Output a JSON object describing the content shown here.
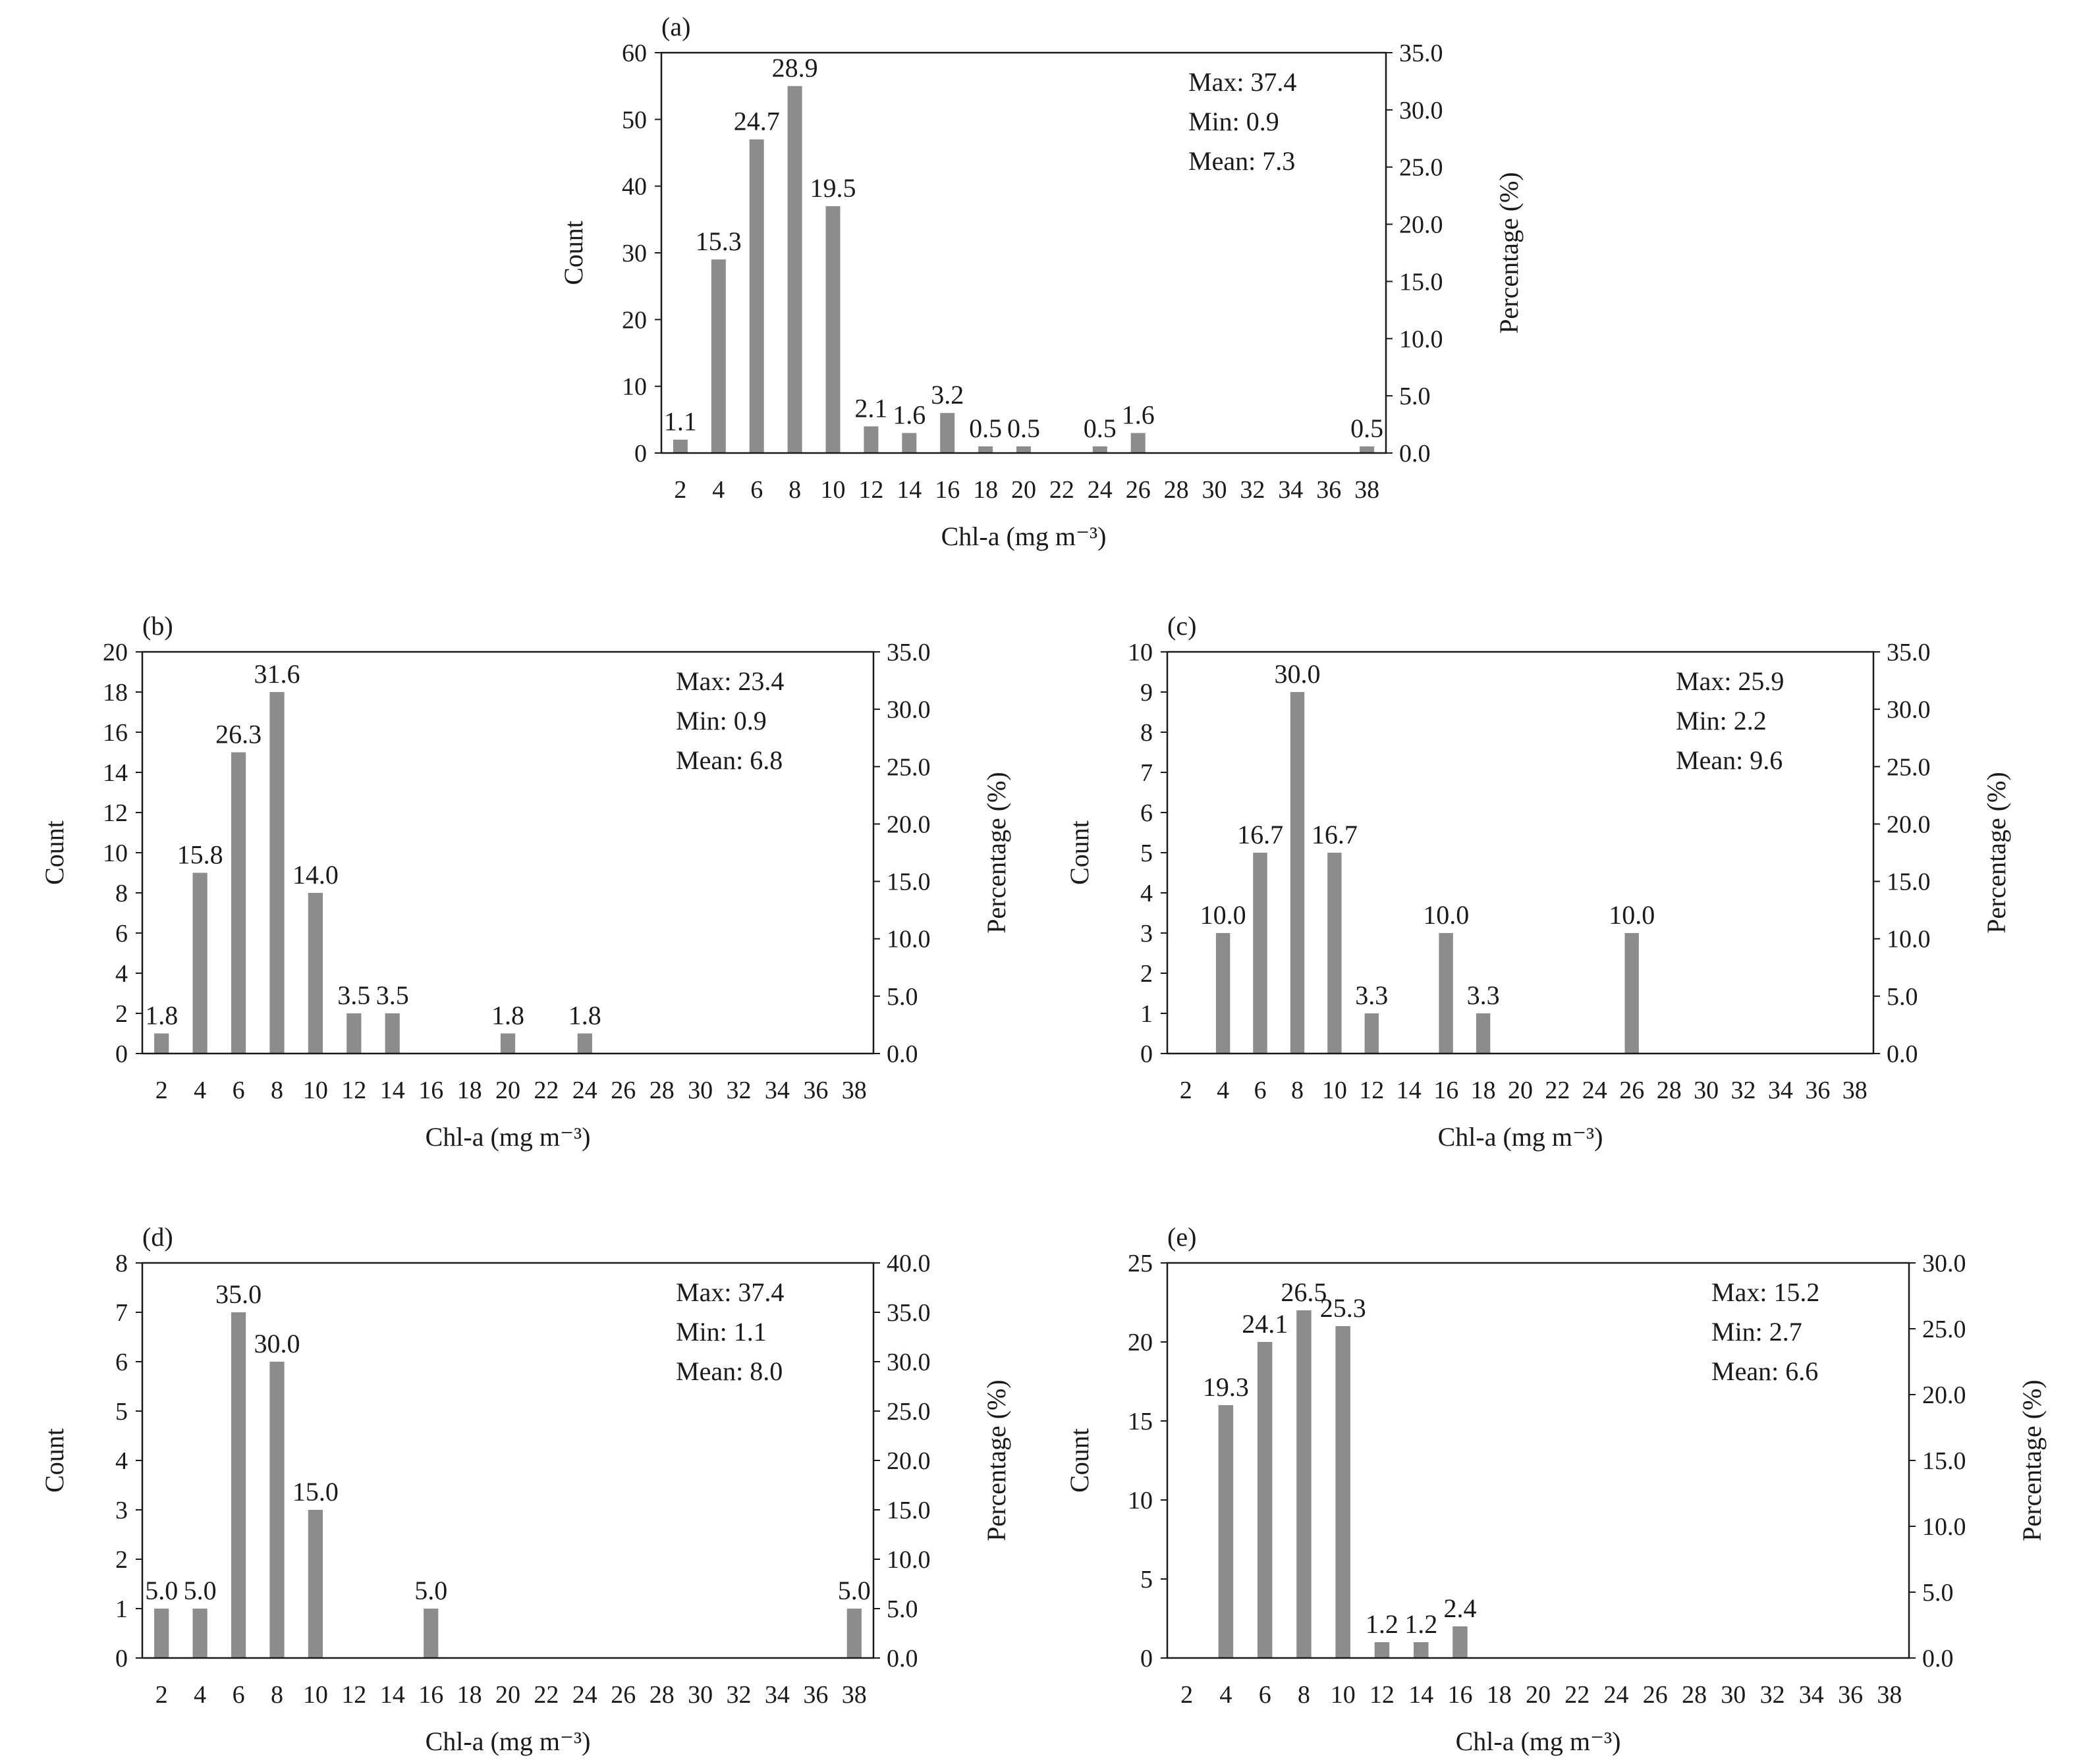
{
  "chart_data": [
    {
      "type": "bar",
      "panel_label": "(a)",
      "categories": [
        "2",
        "4",
        "6",
        "8",
        "10",
        "12",
        "14",
        "16",
        "18",
        "20",
        "22",
        "24",
        "26",
        "28",
        "30",
        "32",
        "34",
        "36",
        "38"
      ],
      "counts": [
        2,
        29,
        47,
        55,
        37,
        4,
        3,
        6,
        1,
        1,
        0,
        1,
        3,
        0,
        0,
        0,
        0,
        0,
        1
      ],
      "percent_labels": [
        "1.1",
        "15.3",
        "24.7",
        "28.9",
        "19.5",
        "2.1",
        "1.6",
        "3.2",
        "0.5",
        "0.5",
        "",
        "0.5",
        "1.6",
        "",
        "",
        "",
        "",
        "",
        "0.5"
      ],
      "xlabel": "Chl-a (mg m⁻³)",
      "ylabel": "Count",
      "y2label": "Percentage (%)",
      "ylim": [
        0,
        60
      ],
      "yticks": [
        "0",
        "10",
        "20",
        "30",
        "40",
        "50",
        "60"
      ],
      "y2lim": [
        0,
        35
      ],
      "y2ticks": [
        "0.0",
        "5.0",
        "10.0",
        "15.0",
        "20.0",
        "25.0",
        "30.0",
        "35.0"
      ],
      "stats": [
        "Max: 37.4",
        "Min: 0.9",
        "Mean: 7.3"
      ],
      "bar_color": "#8c8c8c"
    },
    {
      "type": "bar",
      "panel_label": "(b)",
      "categories": [
        "2",
        "4",
        "6",
        "8",
        "10",
        "12",
        "14",
        "16",
        "18",
        "20",
        "22",
        "24",
        "26",
        "28",
        "30",
        "32",
        "34",
        "36",
        "38"
      ],
      "counts": [
        1,
        9,
        15,
        18,
        8,
        2,
        2,
        0,
        0,
        1,
        0,
        1,
        0,
        0,
        0,
        0,
        0,
        0,
        0
      ],
      "percent_labels": [
        "1.8",
        "15.8",
        "26.3",
        "31.6",
        "14.0",
        "3.5",
        "3.5",
        "",
        "",
        "1.8",
        "",
        "1.8",
        "",
        "",
        "",
        "",
        "",
        "",
        ""
      ],
      "xlabel": "Chl-a (mg m⁻³)",
      "ylabel": "Count",
      "y2label": "Percentage (%)",
      "ylim": [
        0,
        20
      ],
      "yticks": [
        "0",
        "2",
        "4",
        "6",
        "8",
        "10",
        "12",
        "14",
        "16",
        "18",
        "20"
      ],
      "y2lim": [
        0,
        35
      ],
      "y2ticks": [
        "0.0",
        "5.0",
        "10.0",
        "15.0",
        "20.0",
        "25.0",
        "30.0",
        "35.0"
      ],
      "stats": [
        "Max: 23.4",
        "Min: 0.9",
        "Mean: 6.8"
      ],
      "bar_color": "#8c8c8c"
    },
    {
      "type": "bar",
      "panel_label": "(c)",
      "categories": [
        "2",
        "4",
        "6",
        "8",
        "10",
        "12",
        "14",
        "16",
        "18",
        "20",
        "22",
        "24",
        "26",
        "28",
        "30",
        "32",
        "34",
        "36",
        "38"
      ],
      "counts": [
        0,
        3,
        5,
        9,
        5,
        1,
        0,
        3,
        1,
        0,
        0,
        0,
        3,
        0,
        0,
        0,
        0,
        0,
        0
      ],
      "percent_labels": [
        "",
        "10.0",
        "16.7",
        "30.0",
        "16.7",
        "3.3",
        "",
        "10.0",
        "3.3",
        "",
        "",
        "",
        "10.0",
        "",
        "",
        "",
        "",
        "",
        ""
      ],
      "xlabel": "Chl-a (mg m⁻³)",
      "ylabel": "Count",
      "y2label": "Percentage (%)",
      "ylim": [
        0,
        10
      ],
      "yticks": [
        "0",
        "1",
        "2",
        "3",
        "4",
        "5",
        "6",
        "7",
        "8",
        "9",
        "10"
      ],
      "y2lim": [
        0,
        35
      ],
      "y2ticks": [
        "0.0",
        "5.0",
        "10.0",
        "15.0",
        "20.0",
        "25.0",
        "30.0",
        "35.0"
      ],
      "stats": [
        "Max:  25.9",
        "Min: 2.2",
        "Mean: 9.6"
      ],
      "bar_color": "#8c8c8c"
    },
    {
      "type": "bar",
      "panel_label": "(d)",
      "categories": [
        "2",
        "4",
        "6",
        "8",
        "10",
        "12",
        "14",
        "16",
        "18",
        "20",
        "22",
        "24",
        "26",
        "28",
        "30",
        "32",
        "34",
        "36",
        "38"
      ],
      "counts": [
        1,
        1,
        7,
        6,
        3,
        0,
        0,
        1,
        0,
        0,
        0,
        0,
        0,
        0,
        0,
        0,
        0,
        0,
        1
      ],
      "percent_labels": [
        "5.0",
        "5.0",
        "35.0",
        "30.0",
        "15.0",
        "",
        "",
        "5.0",
        "",
        "",
        "",
        "",
        "",
        "",
        "",
        "",
        "",
        "",
        "5.0"
      ],
      "xlabel": "Chl-a (mg m⁻³)",
      "ylabel": "Count",
      "y2label": "Percentage (%)",
      "ylim": [
        0,
        8
      ],
      "yticks": [
        "0",
        "1",
        "2",
        "3",
        "4",
        "5",
        "6",
        "7",
        "8"
      ],
      "y2lim": [
        0,
        40
      ],
      "y2ticks": [
        "0.0",
        "5.0",
        "10.0",
        "15.0",
        "20.0",
        "25.0",
        "30.0",
        "35.0",
        "40.0"
      ],
      "stats": [
        "Max: 37.4",
        "Min: 1.1",
        "Mean: 8.0"
      ],
      "bar_color": "#8c8c8c"
    },
    {
      "type": "bar",
      "panel_label": "(e)",
      "categories": [
        "2",
        "4",
        "6",
        "8",
        "10",
        "12",
        "14",
        "16",
        "18",
        "20",
        "22",
        "24",
        "26",
        "28",
        "30",
        "32",
        "34",
        "36",
        "38"
      ],
      "counts": [
        0,
        16,
        20,
        22,
        21,
        1,
        1,
        2,
        0,
        0,
        0,
        0,
        0,
        0,
        0,
        0,
        0,
        0,
        0
      ],
      "percent_labels": [
        "",
        "19.3",
        "24.1",
        "26.5",
        "25.3",
        "1.2",
        "1.2",
        "2.4",
        "",
        "",
        "",
        "",
        "",
        "",
        "",
        "",
        "",
        "",
        ""
      ],
      "xlabel": "Chl-a (mg m⁻³)",
      "ylabel": "Count",
      "y2label": "Percentage (%)",
      "ylim": [
        0,
        25
      ],
      "yticks": [
        "0",
        "5",
        "10",
        "15",
        "20",
        "25"
      ],
      "y2lim": [
        0,
        30
      ],
      "y2ticks": [
        "0.0",
        "5.0",
        "10.0",
        "15.0",
        "20.0",
        "25.0",
        "30.0"
      ],
      "stats": [
        "Max: 15.2",
        "Min: 2.7",
        "Mean: 6.6"
      ],
      "bar_color": "#8c8c8c"
    }
  ]
}
